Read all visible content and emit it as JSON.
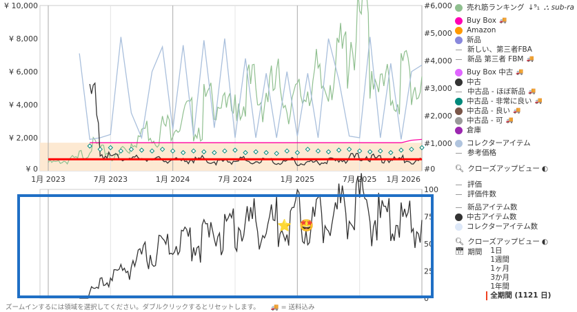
{
  "chart_data": [
    {
      "type": "line",
      "x": [
        "2023-01",
        "2023-02",
        "2023-03",
        "2023-04",
        "2023-05",
        "2023-06",
        "2023-07",
        "2023-08",
        "2023-09",
        "2023-10",
        "2023-11",
        "2023-12",
        "2024-01",
        "2024-02",
        "2024-03",
        "2024-04",
        "2024-05",
        "2024-06",
        "2024-07",
        "2024-08",
        "2024-09",
        "2024-10",
        "2024-11",
        "2024-12",
        "2025-01",
        "2025-02",
        "2025-03",
        "2025-04",
        "2025-05",
        "2025-06",
        "2025-07",
        "2025-08",
        "2025-09",
        "2025-10",
        "2025-11",
        "2025-12",
        "2026-01"
      ],
      "x_tick_labels": [
        "1月 2023",
        "7月 2023",
        "1月 2024",
        "7月 2024",
        "1月 2025",
        "7月 2025",
        "1月 2026"
      ],
      "y_left_ticks": [
        "¥ 0",
        "¥ 2,000",
        "¥ 4,000",
        "¥ 6,000",
        "¥ 8,000",
        "¥ 10,000"
      ],
      "y_right_ticks": [
        "#0",
        "#1,000",
        "#2,000",
        "#3,000",
        "#4,000",
        "#5,000",
        "#6,000"
      ],
      "ylim_left": [
        0,
        10000
      ],
      "ylim_right": [
        0,
        6000
      ],
      "grid": true,
      "series": [
        {
          "name": "売れ筋ランキング",
          "axis": "right",
          "color": "#8fbf8f",
          "values": [
            300,
            350,
            420,
            600,
            900,
            700,
            500,
            800,
            1200,
            1500,
            1300,
            1600,
            1800,
            2000,
            1600,
            2400,
            2800,
            2100,
            2500,
            3000,
            2600,
            2900,
            3100,
            2500,
            2700,
            3300,
            3000,
            3600,
            4200,
            4900,
            5300,
            3800,
            3000,
            2800,
            3500,
            3100,
            3900
          ]
        },
        {
          "name": "コレクターアイテム",
          "axis": "left",
          "color": "#a9bfdc",
          "values": [
            null,
            null,
            null,
            7100,
            1900,
            2000,
            2200,
            8100,
            3500,
            2000,
            6000,
            7500,
            2500,
            7600,
            2100,
            7900,
            2600,
            8000,
            2000,
            6800,
            2000,
            5900,
            2000,
            6000,
            2100,
            5900,
            2000,
            8000,
            5500,
            2100,
            2000,
            8100,
            2000,
            6500,
            1900,
            6000,
            6400
          ]
        },
        {
          "name": "Buy Box",
          "axis": "left",
          "color": "#ff00a0",
          "values": [
            null,
            null,
            null,
            null,
            1700,
            1700,
            1700,
            1700,
            1700,
            1700,
            1700,
            1700,
            1700,
            1700,
            1700,
            1700,
            1700,
            1700,
            1700,
            1700,
            1700,
            1700,
            1700,
            1700,
            1700,
            1700,
            1700,
            1700,
            1700,
            1700,
            1700,
            1700,
            1700,
            1700,
            1700,
            1850,
            1900
          ]
        },
        {
          "name": "中古",
          "axis": "left",
          "color": "#333333",
          "values": [
            null,
            null,
            null,
            null,
            4100,
            1000,
            900,
            800,
            700,
            750,
            650,
            700,
            600,
            650,
            700,
            600,
            550,
            600,
            650,
            500,
            600,
            550,
            500,
            600,
            450,
            500,
            550,
            600,
            700,
            800,
            900,
            750,
            700,
            650,
            700,
            600,
            650
          ]
        },
        {
          "name": "中古品 - 非常に良い",
          "axis": "left",
          "color": "#00897b",
          "marker": "diamond",
          "values": [
            null,
            null,
            null,
            null,
            1500,
            1300,
            1400,
            1200,
            1300,
            1250,
            1200,
            1300,
            1200,
            1100,
            1200,
            1150,
            1100,
            1200,
            1250,
            1100,
            1150,
            1100,
            1050,
            1200,
            1100,
            1300,
            1200,
            1150,
            1250,
            1300,
            1200,
            1150,
            1200,
            1100,
            1250,
            1300,
            1400
          ]
        },
        {
          "name": "",
          "axis": "left",
          "color": "#ff0000",
          "values": [
            700,
            700,
            700,
            700,
            700,
            700,
            700,
            700,
            700,
            700,
            700,
            700,
            700,
            700,
            700,
            700,
            700,
            700,
            700,
            700,
            700,
            700,
            700,
            700,
            700,
            700,
            700,
            700,
            700,
            700,
            700,
            700,
            700,
            700,
            700,
            700,
            700
          ]
        }
      ]
    },
    {
      "type": "line",
      "y_right_ticks": [
        "0",
        "25",
        "50",
        "75",
        "100"
      ],
      "ylim": [
        0,
        100
      ],
      "series": [
        {
          "name": "中古アイテム数",
          "color": "#333333",
          "values": [
            null,
            null,
            null,
            0,
            8,
            15,
            20,
            25,
            35,
            40,
            45,
            48,
            50,
            52,
            50,
            55,
            60,
            62,
            65,
            70,
            66,
            68,
            70,
            72,
            76,
            72,
            75,
            80,
            82,
            86,
            90,
            72,
            70,
            68,
            68,
            65,
            62
          ]
        }
      ]
    }
  ],
  "legend": {
    "ranking": "売れ筋ランキング",
    "subrank": "sub-ra",
    "buybox": "Buy Box",
    "amazon": "Amazon",
    "new": "新品",
    "new_fba": "新しい、第三者FBA",
    "new_fbm": "新品 第三者 FBM",
    "buybox_used": "Buy Box 中古",
    "used": "中古",
    "used_like_new": "中古品 - ほぼ新品",
    "used_very_good": "中古品 - 非常に良い",
    "used_good": "中古品 - 良い",
    "used_acceptable": "中古品 - 可",
    "warehouse": "倉庫",
    "collector": "コレクターアイテム",
    "list_price": "参考価格",
    "closeup": "クローズアップビュー",
    "rating": "評価",
    "rating_count": "評価件数",
    "new_count": "新品アイテム数",
    "used_count": "中古アイテム数",
    "collector_count": "コレクターアイテム数",
    "closeup2": "クローズアップビュー",
    "period": "期間",
    "periods": [
      "1日",
      "1週間",
      "1ヶ月",
      "3か月",
      "1年間",
      "全期間 (1121 日)"
    ],
    "colors": {
      "ranking": "#8fbf8f",
      "buybox": "#ff00b4",
      "amazon": "#ff9900",
      "new": "#8888dd",
      "buybox_used": "#e066ff",
      "used": "#333333",
      "used_very_good": "#00897b",
      "used_good": "#795548",
      "used_acceptable": "#999999",
      "warehouse": "#9c27b0",
      "collector": "#b0c4de",
      "used_count": "#333333",
      "collector_count": "#dde8f8"
    }
  },
  "hint": "ズームインするには領域を選択してください。ダブルクリックするとリセットします。",
  "shipping_note": "= 送料込み",
  "annotations": {
    "star": "⭐",
    "face": "🤩"
  }
}
